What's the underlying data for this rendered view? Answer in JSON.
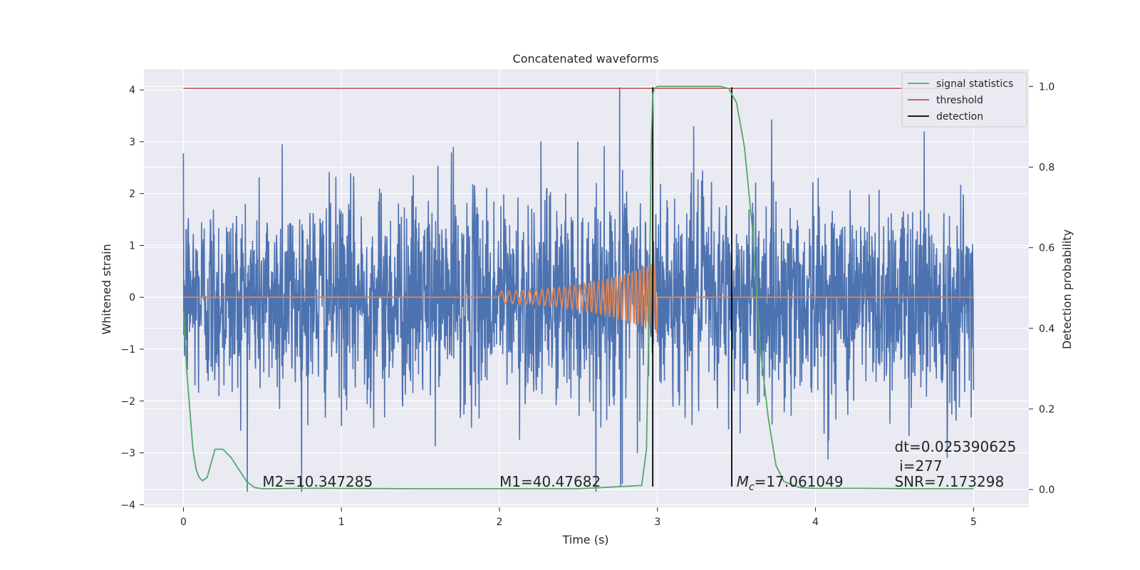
{
  "chart_data": {
    "type": "line",
    "title": "Concatenated waveforms",
    "xlabel": "Time (s)",
    "ylabel": "Whitened strain",
    "y2label": "Detection probability",
    "xlim": [
      -0.25,
      5.35
    ],
    "ylim": [
      -4.05,
      4.4
    ],
    "y2lim": [
      -0.044,
      1.043
    ],
    "xticks": [
      0,
      1,
      2,
      3,
      4,
      5
    ],
    "yticks": [
      4,
      3,
      2,
      1,
      0,
      -1,
      -2,
      -3,
      -4
    ],
    "ytick_labels": [
      "4",
      "3",
      "2",
      "1",
      "0",
      "−1",
      "−2",
      "−3",
      "−4"
    ],
    "y2ticks": [
      1.0,
      0.8,
      0.6,
      0.4,
      0.2,
      0.0
    ],
    "y2tick_labels": [
      "1.0",
      "0.8",
      "0.6",
      "0.4",
      "0.2",
      "0.0"
    ],
    "grid": true,
    "legend_position": "top-right",
    "series": [
      {
        "name": "",
        "kind": "noise",
        "color": "#4c72b0",
        "x_range": [
          0,
          5
        ],
        "typical_amplitude": 1.0,
        "peak_values": [
          2.95,
          2.9,
          3.3,
          4.05,
          -3.65,
          -3.6,
          3.2,
          -3.1
        ]
      },
      {
        "name": "",
        "kind": "chirp",
        "color": "#dd8452",
        "x_range": [
          0,
          5
        ],
        "chirp_start": 2.0,
        "chirp_end": 3.0,
        "amp_start": 0.12,
        "amp_end": 0.7
      },
      {
        "name": "signal statistics",
        "axis": "right",
        "color": "#55a868",
        "x": [
          0,
          0.02,
          0.04,
          0.06,
          0.08,
          0.1,
          0.12,
          0.15,
          0.2,
          0.25,
          0.3,
          0.35,
          0.4,
          0.45,
          0.5,
          0.8,
          1.5,
          2.0,
          2.5,
          2.9,
          2.93,
          2.95,
          2.96,
          2.97,
          2.98,
          3.0,
          3.2,
          3.4,
          3.45,
          3.5,
          3.55,
          3.6,
          3.65,
          3.7,
          3.75,
          3.8,
          3.9,
          4.0,
          4.3,
          4.6,
          5.0
        ],
        "y": [
          0.45,
          0.3,
          0.2,
          0.1,
          0.05,
          0.03,
          0.022,
          0.03,
          0.1,
          0.1,
          0.08,
          0.05,
          0.02,
          0.005,
          0.002,
          0.003,
          0.002,
          0.002,
          0.002,
          0.01,
          0.1,
          0.5,
          0.85,
          0.98,
          0.995,
          1.0,
          1.0,
          1.0,
          0.995,
          0.96,
          0.85,
          0.65,
          0.35,
          0.18,
          0.06,
          0.02,
          0.005,
          0.003,
          0.003,
          0.002,
          0.002
        ]
      },
      {
        "name": "threshold",
        "axis": "right",
        "color": "#c44e52",
        "x": [
          0,
          5
        ],
        "y": [
          0.995,
          0.995
        ]
      },
      {
        "name": "detection",
        "axis": "left",
        "color": "#000000",
        "x_positions": [
          2.97,
          3.47
        ],
        "y_range": [
          -3.65,
          4.05
        ]
      }
    ],
    "annotations": [
      {
        "text": "M2=10.347285",
        "x": 0.5,
        "y": -3.65
      },
      {
        "text": "M1=40.47682",
        "x": 2.0,
        "y": -3.65
      },
      {
        "text": "=17.061049",
        "x": 3.5,
        "y": -3.65,
        "prefix_symbol": "M",
        "prefix_subscript": "c"
      },
      {
        "text": "dt=0.025390625",
        "x": 4.5,
        "y": -2.98
      },
      {
        "text": "i=277",
        "x": 4.53,
        "y": -3.35
      },
      {
        "text": "SNR=7.173298",
        "x": 4.5,
        "y": -3.65
      }
    ],
    "colors": {
      "background": "#eaeaf2",
      "grid": "#ffffff",
      "text": "#262626"
    }
  }
}
